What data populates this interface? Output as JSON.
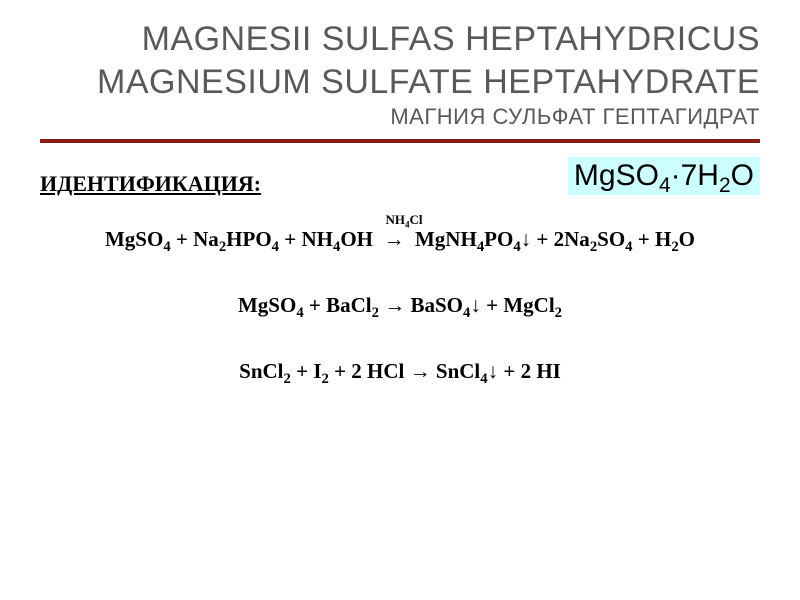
{
  "title": {
    "line1": "MAGNESII SULFAS HEPTAHYDRICUS",
    "line2": "MAGNESIUM SULFATE HEPTAHYDRATE",
    "line3": "МАГНИЯ СУЛЬФАТ ГЕПТАГИДРАТ"
  },
  "rule_color": "#8b1a1a",
  "formula_box": {
    "text_html": "MgSO<sub>4</sub>·7H<sub>2</sub>O",
    "background": "#ccffff",
    "fontsize": 30
  },
  "section_label": "ИДЕНТИФИКАЦИЯ:",
  "equations": [
    {
      "html": "MgSO<sub>4</sub> + Na<sub>2</sub>HPO<sub>4</sub> + NH<sub>4</sub>OH &nbsp;<span class=\"catalyst\">NH<sub>4</sub>Cl</span><br>→&nbsp; MgNH<sub>4</sub>PO<sub>4</sub>↓ + 2Na<sub>2</sub>SO<sub>4</sub> + H<sub>2</sub>O",
      "single_line_html": "MgSO<sub>4</sub> + Na<sub>2</sub>HPO<sub>4</sub> + NH<sub>4</sub>OH &nbsp;<span style=\"position:relative;\"><span style=\"position:absolute;left:2px;top:-16px;font-size:13px;white-space:nowrap;\">NH<sub>4</sub>Cl</span>→</span>&nbsp; MgNH<sub>4</sub>PO<sub>4</sub>↓ + 2Na<sub>2</sub>SO<sub>4</sub> + H<sub>2</sub>O"
    },
    {
      "html": "MgSO<sub>4</sub> + BaCl<sub>2</sub> → BaSO<sub>4</sub>↓ + MgCl<sub>2</sub>"
    },
    {
      "html": "SnCl<sub>2</sub> + I<sub>2</sub> + 2 HCl → SnCl<sub>4</sub>↓ + 2 HI"
    }
  ],
  "typography": {
    "title_color": "#595959",
    "title_fontsize_large": 34,
    "title_fontsize_small": 22,
    "body_font": "Times New Roman",
    "body_fontsize": 21,
    "body_weight": "bold"
  },
  "background_color": "#ffffff"
}
